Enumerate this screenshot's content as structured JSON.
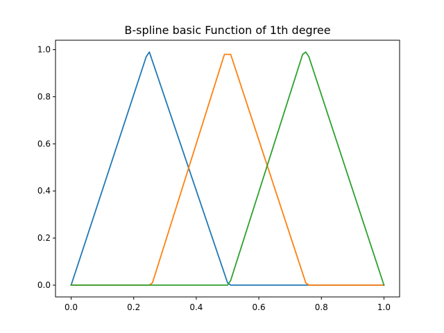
{
  "chart_data": {
    "type": "line",
    "title": "B-spline basic Function of 1th degree",
    "xlabel": "",
    "ylabel": "",
    "xlim": [
      -0.05,
      1.05
    ],
    "ylim": [
      -0.05,
      1.04
    ],
    "grid": false,
    "xticks": [
      0.0,
      0.2,
      0.4,
      0.6,
      0.8,
      1.0
    ],
    "xtick_labels": [
      "0.0",
      "0.2",
      "0.4",
      "0.6",
      "0.8",
      "1.0"
    ],
    "yticks": [
      0.0,
      0.2,
      0.4,
      0.6,
      0.8,
      1.0
    ],
    "ytick_labels": [
      "0.0",
      "0.2",
      "0.4",
      "0.6",
      "0.8",
      "1.0"
    ],
    "series": [
      {
        "color": "#1f77b4",
        "x": [
          0.0,
          0.24,
          0.25,
          0.5,
          0.51,
          1.0
        ],
        "y": [
          0.0,
          0.97,
          0.99,
          0.01,
          0.0,
          0.0
        ]
      },
      {
        "color": "#ff7f0e",
        "x": [
          0.0,
          0.25,
          0.26,
          0.49,
          0.5,
          0.51,
          0.75,
          0.76,
          1.0
        ],
        "y": [
          0.0,
          0.0,
          0.01,
          0.98,
          0.98,
          0.98,
          0.01,
          0.0,
          0.0
        ]
      },
      {
        "color": "#2ca02c",
        "x": [
          0.0,
          0.5,
          0.51,
          0.74,
          0.75,
          0.76,
          1.0
        ],
        "y": [
          0.0,
          0.0,
          0.02,
          0.98,
          0.99,
          0.97,
          0.0
        ]
      }
    ]
  }
}
